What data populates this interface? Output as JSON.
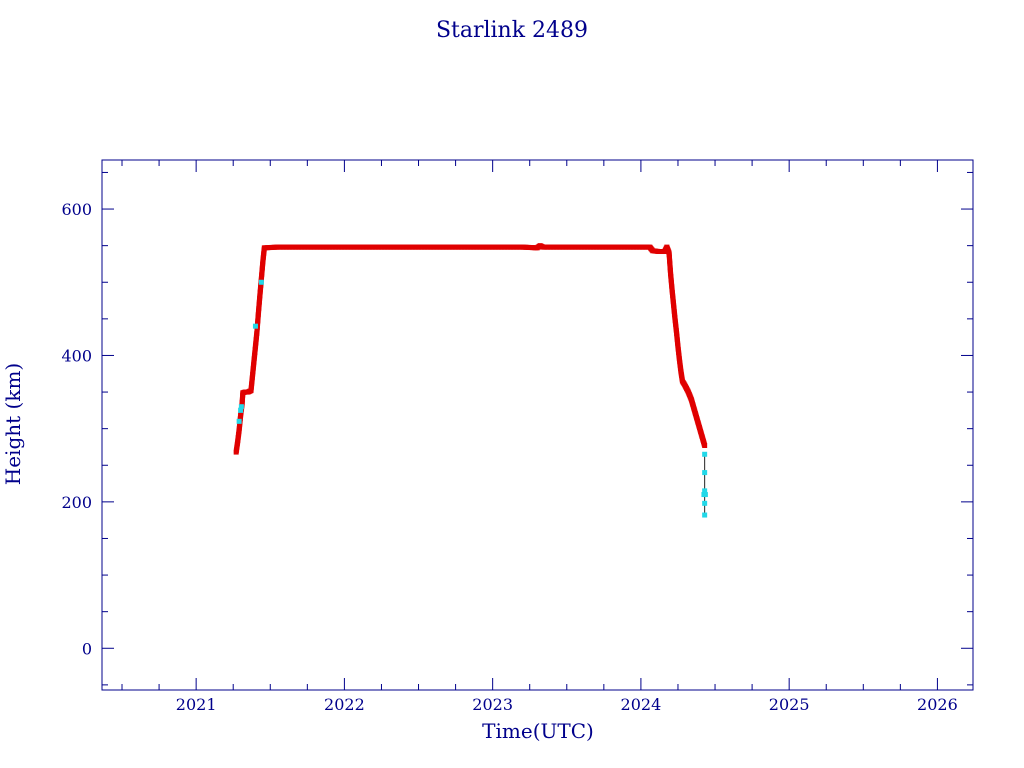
{
  "chart_data": {
    "type": "scatter",
    "title": "Starlink 2489",
    "xlabel": "Time(UTC)",
    "ylabel": "Height (km)",
    "xlim": [
      2020.365,
      2026.24
    ],
    "ylim": [
      -57,
      667
    ],
    "x_ticks": [
      2021,
      2022,
      2023,
      2024,
      2025,
      2026
    ],
    "y_ticks": [
      0,
      200,
      400,
      600
    ],
    "grid": false,
    "colors": {
      "axis": "#00008b",
      "primary_points": "#e00000",
      "secondary_points": "#22d8e8",
      "connector": "#222222"
    },
    "series": [
      {
        "role": "primary",
        "points": [
          [
            2021.27,
            268
          ],
          [
            2021.28,
            282
          ],
          [
            2021.29,
            298
          ],
          [
            2021.3,
            318
          ],
          [
            2021.31,
            334
          ],
          [
            2021.315,
            349
          ],
          [
            2021.33,
            350
          ],
          [
            2021.35,
            350
          ],
          [
            2021.37,
            352
          ],
          [
            2021.38,
            372
          ],
          [
            2021.39,
            392
          ],
          [
            2021.4,
            412
          ],
          [
            2021.41,
            432
          ],
          [
            2021.42,
            458
          ],
          [
            2021.43,
            482
          ],
          [
            2021.44,
            505
          ],
          [
            2021.45,
            528
          ],
          [
            2021.46,
            547
          ],
          [
            2021.55,
            548
          ],
          [
            2021.7,
            548
          ],
          [
            2021.85,
            548
          ],
          [
            2022.0,
            548
          ],
          [
            2022.15,
            548
          ],
          [
            2022.3,
            548
          ],
          [
            2022.45,
            548
          ],
          [
            2022.6,
            548
          ],
          [
            2022.75,
            548
          ],
          [
            2022.9,
            548
          ],
          [
            2023.05,
            548
          ],
          [
            2023.2,
            548
          ],
          [
            2023.3,
            547
          ],
          [
            2023.32,
            550
          ],
          [
            2023.34,
            548
          ],
          [
            2023.5,
            548
          ],
          [
            2023.65,
            548
          ],
          [
            2023.8,
            548
          ],
          [
            2023.95,
            548
          ],
          [
            2024.06,
            548
          ],
          [
            2024.08,
            543
          ],
          [
            2024.12,
            542
          ],
          [
            2024.16,
            542
          ],
          [
            2024.175,
            548
          ],
          [
            2024.19,
            540
          ],
          [
            2024.2,
            512
          ],
          [
            2024.21,
            490
          ],
          [
            2024.22,
            470
          ],
          [
            2024.23,
            450
          ],
          [
            2024.24,
            432
          ],
          [
            2024.25,
            412
          ],
          [
            2024.26,
            394
          ],
          [
            2024.27,
            378
          ],
          [
            2024.28,
            365
          ],
          [
            2024.3,
            358
          ],
          [
            2024.32,
            350
          ],
          [
            2024.34,
            340
          ],
          [
            2024.36,
            326
          ],
          [
            2024.38,
            312
          ],
          [
            2024.4,
            298
          ],
          [
            2024.42,
            284
          ],
          [
            2024.43,
            277
          ]
        ]
      },
      {
        "role": "secondary",
        "points": [
          [
            2021.29,
            310
          ],
          [
            2021.3,
            325
          ],
          [
            2021.305,
            330
          ],
          [
            2021.4,
            440
          ],
          [
            2021.44,
            500
          ],
          [
            2024.43,
            265
          ],
          [
            2024.43,
            240
          ],
          [
            2024.43,
            215
          ],
          [
            2024.435,
            210
          ],
          [
            2024.425,
            210
          ],
          [
            2024.43,
            198
          ],
          [
            2024.43,
            182
          ]
        ]
      }
    ]
  }
}
